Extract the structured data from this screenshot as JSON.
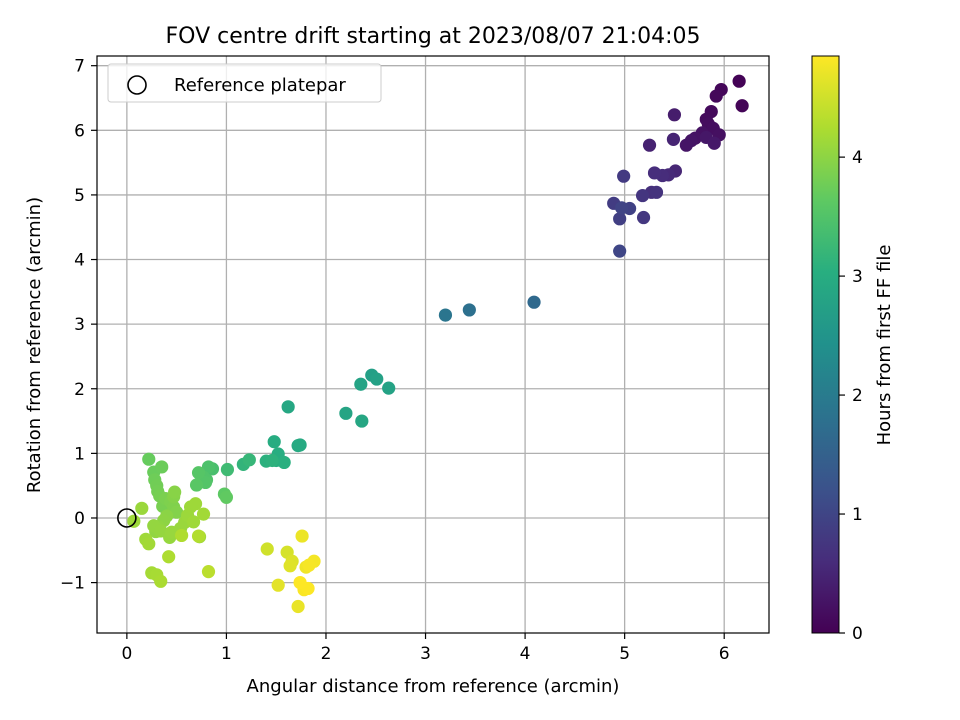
{
  "chart_data": {
    "type": "scatter",
    "title": "FOV centre drift starting at 2023/08/07 21:04:05",
    "xlabel": "Angular distance from reference (arcmin)",
    "ylabel": "Rotation from reference (arcmin)",
    "xlim": [
      -0.3,
      6.45
    ],
    "ylim": [
      -1.78,
      7.15
    ],
    "xticks": [
      0,
      1,
      2,
      3,
      4,
      5,
      6
    ],
    "xtick_labels": [
      "0",
      "1",
      "2",
      "3",
      "4",
      "5",
      "6"
    ],
    "yticks": [
      -1,
      0,
      1,
      2,
      3,
      4,
      5,
      6,
      7
    ],
    "ytick_labels": [
      "−1",
      "0",
      "1",
      "2",
      "3",
      "4",
      "5",
      "6",
      "7"
    ],
    "grid": true,
    "legend": {
      "placement": "top-left",
      "entries": [
        "Reference platepar"
      ]
    },
    "reference_point": {
      "x": 0,
      "y": 0,
      "label": "Reference platepar"
    },
    "colorbar": {
      "label": "Hours from first FF file",
      "colormap": "viridis",
      "range": [
        0,
        4.85
      ],
      "ticks": [
        0,
        1,
        2,
        3,
        4
      ],
      "tick_labels": [
        "0",
        "1",
        "2",
        "3",
        "4"
      ]
    },
    "colors": {
      "grid": "#b0b0b0",
      "reference_marker": "#000000"
    },
    "series": [
      {
        "x": [
          6.15,
          6.18,
          5.97,
          5.92,
          5.87,
          5.82,
          5.84,
          5.89,
          5.95,
          5.78,
          5.71,
          5.67,
          5.62,
          5.82,
          5.9,
          5.5,
          5.25,
          5.49,
          5.51,
          5.44,
          5.38,
          5.3,
          5.27,
          5.32,
          5.18,
          5.19,
          4.99,
          4.89,
          4.95,
          5.05,
          4.97,
          4.95
        ],
        "y": [
          6.76,
          6.38,
          6.63,
          6.53,
          6.29,
          6.17,
          6.1,
          6.03,
          5.93,
          5.96,
          5.88,
          5.84,
          5.77,
          5.89,
          5.8,
          6.24,
          5.77,
          5.86,
          5.37,
          5.31,
          5.3,
          5.34,
          5.04,
          5.04,
          4.99,
          4.65,
          5.29,
          4.87,
          4.63,
          4.79,
          4.8,
          4.13
        ],
        "c": [
          0.03,
          0.05,
          0.08,
          0.1,
          0.12,
          0.14,
          0.16,
          0.18,
          0.2,
          0.22,
          0.24,
          0.26,
          0.28,
          0.3,
          0.32,
          0.38,
          0.45,
          0.48,
          0.52,
          0.56,
          0.6,
          0.63,
          0.66,
          0.7,
          0.74,
          0.78,
          0.82,
          0.86,
          0.9,
          0.94,
          0.98,
          1.02
        ]
      },
      {
        "x": [
          4.09,
          3.44,
          3.2
        ],
        "y": [
          3.34,
          3.22,
          3.14
        ],
        "c": [
          1.65,
          1.78,
          1.88
        ]
      },
      {
        "x": [
          2.46,
          2.51,
          2.63,
          2.35,
          2.2,
          2.36,
          1.62,
          1.72,
          1.74,
          1.48,
          1.52,
          1.5,
          1.58,
          1.4,
          1.46,
          1.17,
          1.23,
          1.01,
          0.86,
          0.82,
          0.8,
          0.77,
          0.79,
          0.72,
          0.7,
          0.98,
          1.0
        ],
        "y": [
          2.21,
          2.15,
          2.01,
          2.07,
          1.62,
          1.5,
          1.72,
          1.12,
          1.13,
          1.18,
          0.99,
          0.89,
          0.86,
          0.88,
          0.89,
          0.83,
          0.9,
          0.75,
          0.76,
          0.79,
          0.59,
          0.63,
          0.55,
          0.7,
          0.51,
          0.37,
          0.32
        ],
        "c": [
          2.72,
          2.75,
          2.78,
          2.8,
          2.83,
          2.86,
          2.88,
          2.92,
          2.95,
          2.98,
          3.0,
          3.02,
          3.05,
          3.08,
          3.1,
          3.15,
          3.2,
          3.3,
          3.4,
          3.45,
          3.48,
          3.5,
          3.52,
          3.55,
          3.58,
          3.62,
          3.65
        ]
      },
      {
        "x": [
          0.22,
          0.27,
          0.35,
          0.28,
          0.3,
          0.31,
          0.33,
          0.36,
          0.39,
          0.44,
          0.47,
          0.5,
          0.47,
          0.48,
          0.4,
          0.37,
          0.32,
          0.29,
          0.27,
          0.34,
          0.43,
          0.45,
          0.54,
          0.58,
          0.61,
          0.64,
          0.69,
          0.67,
          0.73,
          0.77,
          0.15,
          0.07,
          0.19,
          0.22,
          0.25,
          0.3,
          0.34,
          0.42,
          0.55,
          0.72
        ],
        "y": [
          0.91,
          0.71,
          0.79,
          0.59,
          0.5,
          0.41,
          0.34,
          0.18,
          0.3,
          0.25,
          0.17,
          0.09,
          0.33,
          0.4,
          0.03,
          -0.04,
          -0.14,
          -0.21,
          -0.12,
          -0.2,
          -0.3,
          -0.22,
          -0.16,
          -0.07,
          0.04,
          0.17,
          0.22,
          -0.06,
          -0.29,
          0.06,
          0.15,
          -0.05,
          -0.33,
          -0.4,
          -0.85,
          -0.88,
          -0.98,
          -0.6,
          -0.27,
          -0.28
        ],
        "c": [
          3.7,
          3.72,
          3.74,
          3.76,
          3.78,
          3.8,
          3.82,
          3.84,
          3.86,
          3.88,
          3.9,
          3.92,
          3.94,
          3.96,
          3.98,
          4.0,
          4.02,
          4.03,
          4.05,
          4.06,
          4.07,
          4.08,
          4.09,
          4.1,
          4.11,
          4.12,
          4.13,
          4.14,
          4.15,
          4.16,
          4.1,
          4.12,
          4.14,
          4.16,
          4.18,
          4.2,
          4.22,
          4.24,
          4.26,
          4.28
        ]
      },
      {
        "x": [
          0.82,
          1.41,
          1.61,
          1.66,
          1.64,
          1.52,
          1.72,
          1.76,
          1.8,
          1.88,
          1.83,
          1.78,
          1.82,
          1.74
        ],
        "y": [
          -0.83,
          -0.48,
          -0.53,
          -0.67,
          -0.74,
          -1.04,
          -1.37,
          -0.28,
          -0.76,
          -0.67,
          -0.73,
          -1.11,
          -1.09,
          -1.0
        ],
        "c": [
          4.35,
          4.5,
          4.55,
          4.6,
          4.62,
          4.65,
          4.7,
          4.72,
          4.75,
          4.78,
          4.8,
          4.82,
          4.84,
          4.85
        ]
      }
    ]
  }
}
